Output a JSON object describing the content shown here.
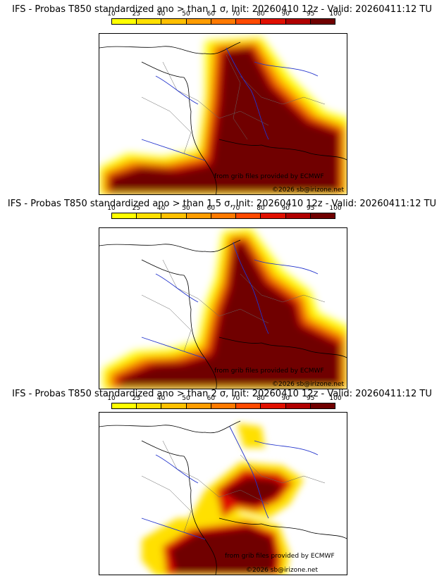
{
  "colorbar": {
    "labels": [
      "10",
      "25",
      "40",
      "50",
      "60",
      "70",
      "80",
      "90",
      "95",
      "100"
    ],
    "colors": [
      "#ffff00",
      "#ffe000",
      "#ffc000",
      "#ff9d00",
      "#ff7a00",
      "#ff4a00",
      "#e01000",
      "#b00000",
      "#700000"
    ]
  },
  "panels": [
    {
      "title": "IFS - Probas T850  standardized ano > than 1 σ, Init: 20260410 12z - Valid: 20260411:12 TU",
      "source": "from grib files provided by ECMWF",
      "copyright": "©2026 sb@irizone.net"
    },
    {
      "title": "IFS - Probas T850  standardized ano > than 1.5 σ, Init: 20260410 12z - Valid: 20260411:12 TU",
      "source": "from grib files provided by ECMWF",
      "copyright": "©2026 sb@irizone.net"
    },
    {
      "title": "IFS - Probas T850  standardized ano > than 2 σ, Init: 20260410 12z - Valid: 20260411:12 TU",
      "source": "from grib files provided by ECMWF",
      "copyright": "©2026 sb@irizone.net"
    }
  ]
}
